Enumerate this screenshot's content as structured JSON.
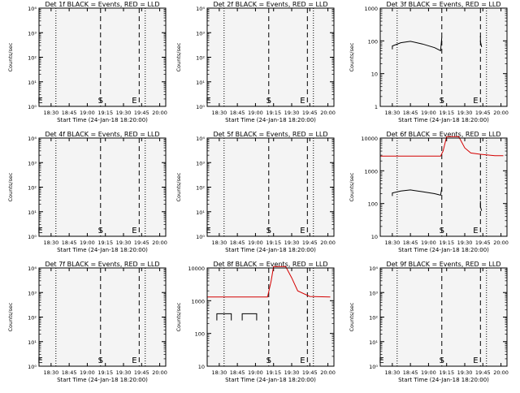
{
  "figure": {
    "background": "#ffffff",
    "plot_background": "#f4f4f4",
    "axis_color": "#000000",
    "events_color": "#000000",
    "lld_color": "#d40000"
  },
  "chart_data": [
    {
      "type": "line",
      "detector": "1f",
      "title": "Det 1f BLACK = Events, RED = LLD",
      "xlabel": "Start Time (24-Jan-18 18:20:00)",
      "ylabel": "Counts/sec",
      "yscale": "log",
      "xlim": [
        "18:20",
        "20:05"
      ],
      "ylim": [
        "10⁰",
        "10⁴"
      ],
      "x_ticks": [
        "18:30",
        "18:45",
        "19:00",
        "19:15",
        "19:30",
        "19:45",
        "20:00"
      ],
      "y_ticks": [
        "10⁰",
        "10¹",
        "10²",
        "10³",
        "10⁴"
      ],
      "dotted_lines_x": [
        "18:34",
        "19:48"
      ],
      "dashed_lines_x": [
        "19:11",
        "19:43"
      ],
      "markers": [
        {
          "label": "E",
          "x": "18:21"
        },
        {
          "label": "S",
          "x": "19:11"
        },
        {
          "label": "E",
          "x": "19:39"
        }
      ],
      "series": []
    },
    {
      "type": "line",
      "detector": "2f",
      "title": "Det 2f BLACK = Events, RED = LLD",
      "xlabel": "Start Time (24-Jan-18 18:20:00)",
      "ylabel": "Counts/sec",
      "yscale": "log",
      "xlim": [
        "18:20",
        "20:05"
      ],
      "ylim": [
        "10⁰",
        "10⁴"
      ],
      "x_ticks": [
        "18:30",
        "18:45",
        "19:00",
        "19:15",
        "19:30",
        "19:45",
        "20:00"
      ],
      "y_ticks": [
        "10⁰",
        "10¹",
        "10²",
        "10³",
        "10⁴"
      ],
      "dotted_lines_x": [
        "18:34",
        "19:48"
      ],
      "dashed_lines_x": [
        "19:11",
        "19:43"
      ],
      "markers": [
        {
          "label": "E",
          "x": "18:21"
        },
        {
          "label": "S",
          "x": "19:11"
        },
        {
          "label": "E",
          "x": "19:39"
        }
      ],
      "series": []
    },
    {
      "type": "line",
      "detector": "3f",
      "title": "Det 3f BLACK = Events, RED = LLD",
      "xlabel": "Start Time (24-Jan-18 18:20:00)",
      "ylabel": "Counts/sec",
      "yscale": "log",
      "xlim": [
        "18:20",
        "20:05"
      ],
      "ylim": [
        1,
        1000
      ],
      "x_ticks": [
        "18:30",
        "18:45",
        "19:00",
        "19:15",
        "19:30",
        "19:45",
        "20:00"
      ],
      "y_ticks": [
        "1",
        "10",
        "100",
        "1000"
      ],
      "dotted_lines_x": [
        "18:34",
        "19:48"
      ],
      "dashed_lines_x": [
        "19:11",
        "19:43"
      ],
      "markers": [
        {
          "label": "S",
          "x": "19:11"
        },
        {
          "label": "E",
          "x": "19:39"
        }
      ],
      "series": [
        {
          "color": "black",
          "points": [
            [
              "18:30",
              55
            ],
            [
              "18:30",
              70
            ],
            [
              "18:37",
              88
            ],
            [
              "18:45",
              97
            ],
            [
              "18:55",
              80
            ],
            [
              "19:05",
              62
            ],
            [
              "19:10",
              50
            ],
            [
              "19:11",
              130
            ]
          ]
        },
        {
          "color": "black",
          "points": [
            [
              "19:43",
              140
            ],
            [
              "19:43",
              95
            ],
            [
              "19:44",
              65
            ]
          ]
        }
      ]
    },
    {
      "type": "line",
      "detector": "4f",
      "title": "Det 4f BLACK = Events, RED = LLD",
      "xlabel": "Start Time (24-Jan-18 18:20:00)",
      "ylabel": "Counts/sec",
      "yscale": "log",
      "xlim": [
        "18:20",
        "20:05"
      ],
      "ylim": [
        "10⁰",
        "10⁴"
      ],
      "x_ticks": [
        "18:30",
        "18:45",
        "19:00",
        "19:15",
        "19:30",
        "19:45",
        "20:00"
      ],
      "y_ticks": [
        "10⁰",
        "10¹",
        "10²",
        "10³",
        "10⁴"
      ],
      "dotted_lines_x": [
        "18:34",
        "19:48"
      ],
      "dashed_lines_x": [
        "19:11",
        "19:43"
      ],
      "markers": [
        {
          "label": "E",
          "x": "18:21"
        },
        {
          "label": "S",
          "x": "19:11"
        },
        {
          "label": "E",
          "x": "19:39"
        }
      ],
      "series": []
    },
    {
      "type": "line",
      "detector": "5f",
      "title": "Det 5f BLACK = Events, RED = LLD",
      "xlabel": "Start Time (24-Jan-18 18:20:00)",
      "ylabel": "Counts/sec",
      "yscale": "log",
      "xlim": [
        "18:20",
        "20:05"
      ],
      "ylim": [
        "10⁰",
        "10⁴"
      ],
      "x_ticks": [
        "18:30",
        "18:45",
        "19:00",
        "19:15",
        "19:30",
        "19:45",
        "20:00"
      ],
      "y_ticks": [
        "10⁰",
        "10¹",
        "10²",
        "10³",
        "10⁴"
      ],
      "dotted_lines_x": [
        "18:34",
        "19:48"
      ],
      "dashed_lines_x": [
        "19:11",
        "19:43"
      ],
      "markers": [
        {
          "label": "E",
          "x": "18:21"
        },
        {
          "label": "S",
          "x": "19:11"
        },
        {
          "label": "E",
          "x": "19:39"
        }
      ],
      "series": []
    },
    {
      "type": "line",
      "detector": "6f",
      "title": "Det 6f BLACK = Events, RED = LLD",
      "xlabel": "Start Time (24-Jan-18 18:20:00)",
      "ylabel": "Counts/sec",
      "yscale": "log",
      "xlim": [
        "18:20",
        "20:05"
      ],
      "ylim": [
        10,
        10000
      ],
      "x_ticks": [
        "18:30",
        "18:45",
        "19:00",
        "19:15",
        "19:30",
        "19:45",
        "20:00"
      ],
      "y_ticks": [
        "10",
        "100",
        "1000",
        "10000"
      ],
      "dotted_lines_x": [
        "18:34",
        "19:48"
      ],
      "dashed_lines_x": [
        "19:11",
        "19:43"
      ],
      "markers": [
        {
          "label": "S",
          "x": "19:11"
        },
        {
          "label": "E",
          "x": "19:39"
        }
      ],
      "series": [
        {
          "color": "red",
          "points": [
            [
              "18:20",
              2800
            ],
            [
              "19:10",
              2800
            ],
            [
              "19:12",
              4000
            ],
            [
              "19:15",
              11000
            ],
            [
              "19:25",
              11000
            ],
            [
              "19:30",
              5000
            ],
            [
              "19:35",
              3500
            ],
            [
              "19:43",
              3200
            ],
            [
              "19:55",
              2900
            ],
            [
              "20:02",
              2900
            ]
          ]
        },
        {
          "color": "black",
          "points": [
            [
              "18:30",
              170
            ],
            [
              "18:30",
              210
            ],
            [
              "18:37",
              240
            ],
            [
              "18:45",
              260
            ],
            [
              "18:55",
              230
            ],
            [
              "19:05",
              200
            ],
            [
              "19:10",
              180
            ],
            [
              "19:11",
              300
            ]
          ]
        },
        {
          "color": "black",
          "points": [
            [
              "19:43",
              120
            ],
            [
              "19:43",
              80
            ],
            [
              "19:44",
              60
            ]
          ]
        }
      ]
    },
    {
      "type": "line",
      "detector": "7f",
      "title": "Det 7f BLACK = Events, RED = LLD",
      "xlabel": "Start Time (24-Jan-18 18:20:00)",
      "ylabel": "Counts/sec",
      "yscale": "log",
      "xlim": [
        "18:20",
        "20:05"
      ],
      "ylim": [
        "10⁰",
        "10⁴"
      ],
      "x_ticks": [
        "18:30",
        "18:45",
        "19:00",
        "19:15",
        "19:30",
        "19:45",
        "20:00"
      ],
      "y_ticks": [
        "10⁰",
        "10¹",
        "10²",
        "10³",
        "10⁴"
      ],
      "dotted_lines_x": [
        "18:34",
        "19:48"
      ],
      "dashed_lines_x": [
        "19:11",
        "19:43"
      ],
      "markers": [
        {
          "label": "E",
          "x": "18:21"
        },
        {
          "label": "S",
          "x": "19:11"
        },
        {
          "label": "E",
          "x": "19:39"
        }
      ],
      "series": []
    },
    {
      "type": "line",
      "detector": "8f",
      "title": "Det 8f BLACK = Events, RED = LLD",
      "xlabel": "Start Time (24-Jan-18 18:20:00)",
      "ylabel": "Counts/sec",
      "yscale": "log",
      "xlim": [
        "18:20",
        "20:05"
      ],
      "ylim": [
        10,
        10000
      ],
      "x_ticks": [
        "18:30",
        "18:45",
        "19:00",
        "19:15",
        "19:30",
        "19:45",
        "20:00"
      ],
      "y_ticks": [
        "10",
        "100",
        "1000",
        "10000"
      ],
      "dotted_lines_x": [
        "18:34",
        "19:48"
      ],
      "dashed_lines_x": [
        "19:11",
        "19:43"
      ],
      "markers": [
        {
          "label": "S",
          "x": "19:11"
        },
        {
          "label": "E",
          "x": "19:39"
        }
      ],
      "series": [
        {
          "color": "red",
          "points": [
            [
              "18:20",
              1300
            ],
            [
              "19:10",
              1300
            ],
            [
              "19:13",
              4000
            ],
            [
              "19:15",
              11000
            ],
            [
              "19:25",
              11000
            ],
            [
              "19:30",
              5000
            ],
            [
              "19:35",
              2000
            ],
            [
              "19:45",
              1350
            ],
            [
              "20:02",
              1300
            ]
          ]
        },
        {
          "color": "black",
          "points": [
            [
              "18:28",
              250
            ],
            [
              "18:28",
              400
            ],
            [
              "18:40",
              400
            ],
            [
              "18:40",
              250
            ]
          ]
        },
        {
          "color": "black",
          "points": [
            [
              "18:49",
              250
            ],
            [
              "18:49",
              400
            ],
            [
              "19:01",
              400
            ],
            [
              "19:01",
              250
            ]
          ]
        },
        {
          "color": "black",
          "points": [
            [
              "19:43",
              500
            ],
            [
              "19:43",
              400
            ]
          ]
        }
      ]
    },
    {
      "type": "line",
      "detector": "9f",
      "title": "Det 9f BLACK = Events, RED = LLD",
      "xlabel": "Start Time (24-Jan-18 18:20:00)",
      "ylabel": "Counts/sec",
      "yscale": "log",
      "xlim": [
        "18:20",
        "20:05"
      ],
      "ylim": [
        "10⁰",
        "10⁴"
      ],
      "x_ticks": [
        "18:30",
        "18:45",
        "19:00",
        "19:15",
        "19:30",
        "19:45",
        "20:00"
      ],
      "y_ticks": [
        "10⁰",
        "10¹",
        "10²",
        "10³",
        "10⁴"
      ],
      "dotted_lines_x": [
        "18:34",
        "19:48"
      ],
      "dashed_lines_x": [
        "19:11",
        "19:43"
      ],
      "markers": [
        {
          "label": "E",
          "x": "18:21"
        },
        {
          "label": "S",
          "x": "19:11"
        },
        {
          "label": "E",
          "x": "19:39"
        }
      ],
      "series": []
    }
  ]
}
